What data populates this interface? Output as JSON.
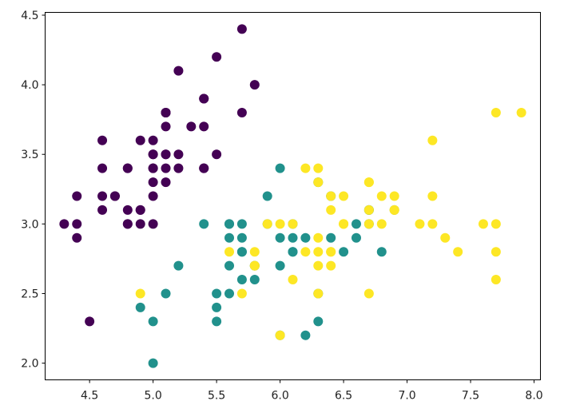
{
  "colors": {
    "background": "#ffffff",
    "setosa": "#440154",
    "versicolor": "#21918c",
    "virginica": "#fde725"
  },
  "chart_data": {
    "type": "scatter",
    "title": "",
    "xlabel": "",
    "ylabel": "",
    "xlim": [
      4.15,
      8.05
    ],
    "ylim": [
      1.88,
      4.52
    ],
    "xticks": [
      4.5,
      5.0,
      5.5,
      6.0,
      6.5,
      7.0,
      7.5,
      8.0
    ],
    "yticks": [
      2.0,
      2.5,
      3.0,
      3.5,
      4.0,
      4.5
    ],
    "xtick_labels": [
      "4.5",
      "5.0",
      "5.5",
      "6.0",
      "6.5",
      "7.0",
      "7.5",
      "8.0"
    ],
    "ytick_labels": [
      "2.0",
      "2.5",
      "3.0",
      "3.5",
      "4.0",
      "4.5"
    ],
    "grid": false,
    "series": [
      {
        "color": "#440154",
        "points": [
          [
            5.1,
            3.5
          ],
          [
            4.9,
            3.0
          ],
          [
            4.7,
            3.2
          ],
          [
            4.6,
            3.1
          ],
          [
            5.0,
            3.6
          ],
          [
            5.4,
            3.9
          ],
          [
            4.6,
            3.4
          ],
          [
            5.0,
            3.4
          ],
          [
            4.4,
            2.9
          ],
          [
            4.9,
            3.1
          ],
          [
            5.4,
            3.7
          ],
          [
            4.8,
            3.4
          ],
          [
            4.8,
            3.0
          ],
          [
            4.3,
            3.0
          ],
          [
            5.8,
            4.0
          ],
          [
            5.7,
            4.4
          ],
          [
            5.4,
            3.9
          ],
          [
            5.1,
            3.5
          ],
          [
            5.7,
            3.8
          ],
          [
            5.1,
            3.8
          ],
          [
            5.4,
            3.4
          ],
          [
            5.1,
            3.7
          ],
          [
            4.6,
            3.6
          ],
          [
            5.1,
            3.3
          ],
          [
            4.8,
            3.4
          ],
          [
            5.0,
            3.0
          ],
          [
            5.0,
            3.4
          ],
          [
            5.2,
            3.5
          ],
          [
            5.2,
            3.4
          ],
          [
            4.7,
            3.2
          ],
          [
            4.8,
            3.1
          ],
          [
            5.4,
            3.4
          ],
          [
            5.2,
            4.1
          ],
          [
            5.5,
            4.2
          ],
          [
            4.9,
            3.1
          ],
          [
            5.0,
            3.2
          ],
          [
            5.5,
            3.5
          ],
          [
            4.9,
            3.6
          ],
          [
            4.4,
            3.0
          ],
          [
            5.1,
            3.4
          ],
          [
            5.0,
            3.5
          ],
          [
            4.5,
            2.3
          ],
          [
            4.4,
            3.2
          ],
          [
            5.0,
            3.5
          ],
          [
            5.1,
            3.8
          ],
          [
            4.8,
            3.0
          ],
          [
            5.1,
            3.8
          ],
          [
            4.6,
            3.2
          ],
          [
            5.3,
            3.7
          ],
          [
            5.0,
            3.3
          ]
        ]
      },
      {
        "color": "#21918c",
        "points": [
          [
            6.4,
            3.2
          ],
          [
            6.9,
            3.1
          ],
          [
            5.5,
            2.3
          ],
          [
            6.5,
            2.8
          ],
          [
            5.7,
            2.8
          ],
          [
            6.3,
            3.3
          ],
          [
            4.9,
            2.4
          ],
          [
            6.6,
            2.9
          ],
          [
            5.2,
            2.7
          ],
          [
            5.0,
            2.0
          ],
          [
            5.9,
            3.0
          ],
          [
            6.0,
            2.2
          ],
          [
            6.1,
            2.9
          ],
          [
            5.6,
            2.9
          ],
          [
            6.7,
            3.1
          ],
          [
            5.6,
            3.0
          ],
          [
            5.8,
            2.7
          ],
          [
            6.2,
            2.2
          ],
          [
            5.6,
            2.5
          ],
          [
            5.9,
            3.2
          ],
          [
            6.1,
            2.8
          ],
          [
            6.3,
            2.5
          ],
          [
            6.1,
            2.8
          ],
          [
            6.4,
            2.9
          ],
          [
            6.6,
            3.0
          ],
          [
            6.8,
            2.8
          ],
          [
            6.7,
            3.0
          ],
          [
            6.0,
            2.9
          ],
          [
            5.7,
            2.6
          ],
          [
            5.5,
            2.4
          ],
          [
            5.8,
            2.7
          ],
          [
            6.0,
            2.7
          ],
          [
            5.4,
            3.0
          ],
          [
            6.0,
            3.4
          ],
          [
            6.7,
            3.1
          ],
          [
            6.3,
            2.3
          ],
          [
            5.6,
            3.0
          ],
          [
            5.5,
            2.5
          ],
          [
            6.1,
            3.0
          ],
          [
            5.8,
            2.6
          ],
          [
            5.0,
            2.3
          ],
          [
            5.6,
            2.7
          ],
          [
            5.7,
            3.0
          ],
          [
            5.7,
            2.9
          ],
          [
            6.2,
            2.9
          ],
          [
            5.1,
            2.5
          ],
          [
            5.7,
            2.8
          ]
        ]
      },
      {
        "color": "#fde725",
        "points": [
          [
            6.3,
            3.3
          ],
          [
            5.8,
            2.7
          ],
          [
            7.1,
            3.0
          ],
          [
            6.3,
            2.9
          ],
          [
            6.5,
            3.0
          ],
          [
            7.6,
            3.0
          ],
          [
            4.9,
            2.5
          ],
          [
            7.3,
            2.9
          ],
          [
            6.7,
            2.5
          ],
          [
            7.2,
            3.6
          ],
          [
            6.5,
            3.2
          ],
          [
            6.4,
            2.7
          ],
          [
            6.8,
            3.0
          ],
          [
            5.7,
            2.5
          ],
          [
            5.8,
            2.8
          ],
          [
            6.4,
            3.2
          ],
          [
            6.5,
            3.0
          ],
          [
            7.7,
            3.8
          ],
          [
            7.7,
            2.6
          ],
          [
            6.0,
            2.2
          ],
          [
            6.9,
            3.2
          ],
          [
            5.6,
            2.8
          ],
          [
            7.7,
            2.8
          ],
          [
            6.3,
            2.7
          ],
          [
            6.7,
            3.3
          ],
          [
            7.2,
            3.2
          ],
          [
            6.2,
            2.8
          ],
          [
            6.1,
            3.0
          ],
          [
            6.4,
            2.8
          ],
          [
            7.2,
            3.0
          ],
          [
            7.4,
            2.8
          ],
          [
            7.9,
            3.8
          ],
          [
            6.4,
            2.8
          ],
          [
            6.3,
            2.8
          ],
          [
            6.1,
            2.6
          ],
          [
            7.7,
            3.0
          ],
          [
            6.3,
            3.4
          ],
          [
            6.4,
            3.1
          ],
          [
            6.0,
            3.0
          ],
          [
            6.9,
            3.1
          ],
          [
            6.7,
            3.1
          ],
          [
            6.9,
            3.1
          ],
          [
            5.8,
            2.7
          ],
          [
            6.8,
            3.2
          ],
          [
            6.7,
            3.3
          ],
          [
            6.7,
            3.0
          ],
          [
            6.3,
            2.5
          ],
          [
            6.5,
            3.0
          ],
          [
            6.2,
            3.4
          ],
          [
            5.9,
            3.0
          ]
        ]
      }
    ]
  }
}
